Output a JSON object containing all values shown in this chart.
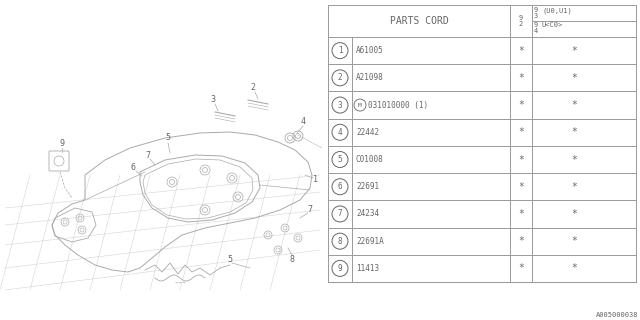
{
  "title": "PARTS CORD",
  "rows": [
    {
      "num": "1",
      "part": "A61005"
    },
    {
      "num": "2",
      "part": "A21098"
    },
    {
      "num": "3",
      "part": "031010000 (1)",
      "circled_prefix": "M"
    },
    {
      "num": "4",
      "part": "22442"
    },
    {
      "num": "5",
      "part": "C01008"
    },
    {
      "num": "6",
      "part": "22691"
    },
    {
      "num": "7",
      "part": "24234"
    },
    {
      "num": "8",
      "part": "22691A"
    },
    {
      "num": "9",
      "part": "11413"
    }
  ],
  "footnote": "A005000038",
  "bg_color": "#ffffff",
  "line_color": "#999999",
  "text_color": "#666666",
  "fig_width": 6.4,
  "fig_height": 3.2,
  "dpi": 100
}
